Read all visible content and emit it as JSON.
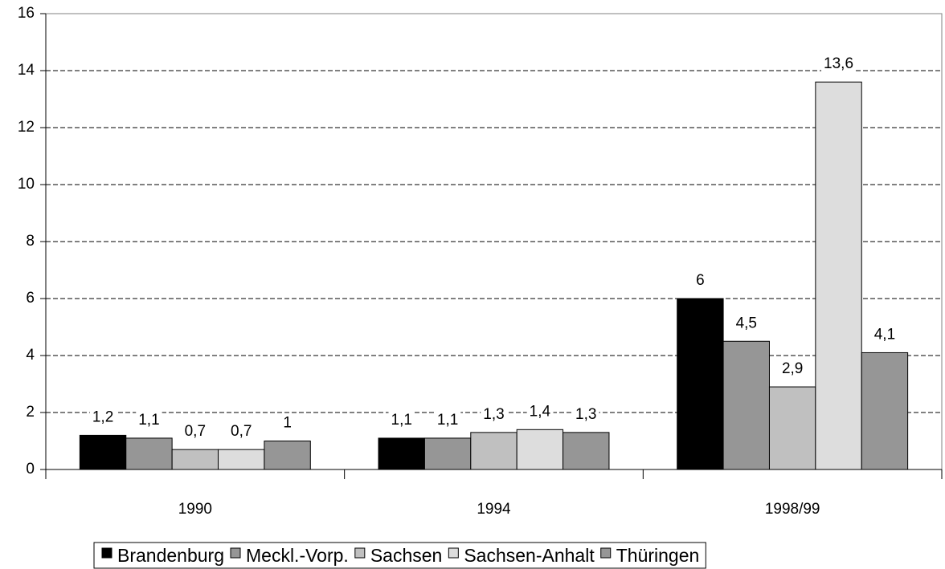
{
  "chart_data": {
    "type": "bar",
    "categories": [
      "1990",
      "1994",
      "1998/99"
    ],
    "series": [
      {
        "name": "Brandenburg",
        "color": "#000000",
        "values": [
          1.2,
          1.1,
          6
        ],
        "value_labels": [
          "1,2",
          "1,1",
          "6"
        ]
      },
      {
        "name": "Meckl.-Vorp.",
        "color": "#969696",
        "values": [
          1.1,
          1.1,
          4.5
        ],
        "value_labels": [
          "1,1",
          "1,1",
          "4,5"
        ]
      },
      {
        "name": "Sachsen",
        "color": "#c0c0c0",
        "values": [
          0.7,
          1.3,
          2.9
        ],
        "value_labels": [
          "0,7",
          "1,3",
          "2,9"
        ]
      },
      {
        "name": "Sachsen-Anhalt",
        "color": "#dddddd",
        "values": [
          0.7,
          1.4,
          13.6
        ],
        "value_labels": [
          "0,7",
          "1,4",
          "13,6"
        ]
      },
      {
        "name": "Thüringen",
        "color": "#969696",
        "values": [
          1,
          1.3,
          4.1
        ],
        "value_labels": [
          "1",
          "1,3",
          "4,1"
        ]
      }
    ],
    "ylim": [
      0,
      16
    ],
    "yticks": [
      0,
      2,
      4,
      6,
      8,
      10,
      12,
      14,
      16
    ],
    "grid": true,
    "legend": "bottom"
  }
}
